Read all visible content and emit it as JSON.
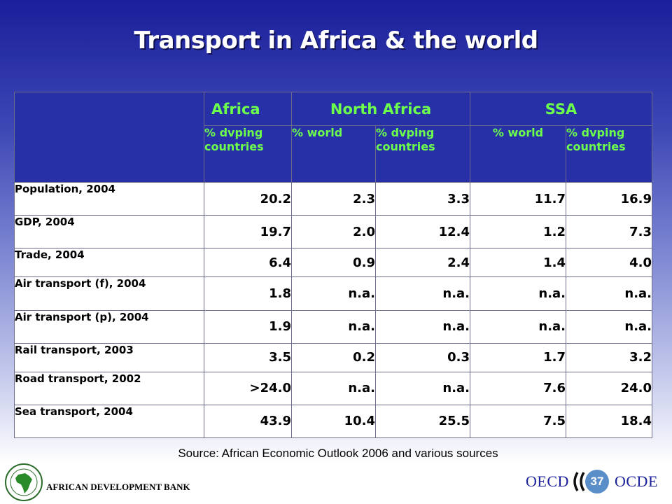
{
  "slide": {
    "title": "Transport in Africa & the world"
  },
  "table": {
    "groups": [
      "Africa",
      "North Africa",
      "SSA"
    ],
    "subheaders": [
      "% dvping countries",
      "% world",
      "% dvping countries",
      "% world",
      "% dvping countries"
    ],
    "rows": [
      {
        "label": "Population, 2004",
        "values": [
          "20.2",
          "2.3",
          "3.3",
          "11.7",
          "16.9"
        ]
      },
      {
        "label": "GDP, 2004",
        "values": [
          "19.7",
          "2.0",
          "12.4",
          "1.2",
          "7.3"
        ]
      },
      {
        "label": "Trade, 2004",
        "values": [
          "6.4",
          "0.9",
          "2.4",
          "1.4",
          "4.0"
        ]
      },
      {
        "label": "Air transport (f), 2004",
        "values": [
          "1.8",
          "n.a.",
          "n.a.",
          "n.a.",
          "n.a."
        ]
      },
      {
        "label": "Air transport (p), 2004",
        "values": [
          "1.9",
          "n.a.",
          "n.a.",
          "n.a.",
          "n.a."
        ]
      },
      {
        "label": "Rail transport, 2003",
        "values": [
          "3.5",
          "0.2",
          "0.3",
          "1.7",
          "3.2"
        ]
      },
      {
        "label": "Road transport, 2002",
        "values": [
          ">24.0",
          "n.a.",
          "n.a.",
          "7.6",
          "24.0"
        ]
      },
      {
        "label": "Sea transport, 2004",
        "values": [
          "43.9",
          "10.4",
          "25.5",
          "7.5",
          "18.4"
        ]
      }
    ]
  },
  "source": "Source: African Economic Outlook 2006 and various sources",
  "footer": {
    "bank_name": "AFRICAN DEVELOPMENT BANK",
    "oecd_en": "OECD",
    "oecd_fr": "OCDE",
    "page_number": "37"
  },
  "colors": {
    "header_bg": "#2830a8",
    "header_text": "#6cff4c",
    "title_text": "#ffffff",
    "oecd_blue": "#1a1f9a"
  },
  "icons": [
    "afdb-logo-icon",
    "oecd-quote-icon",
    "page-badge"
  ]
}
